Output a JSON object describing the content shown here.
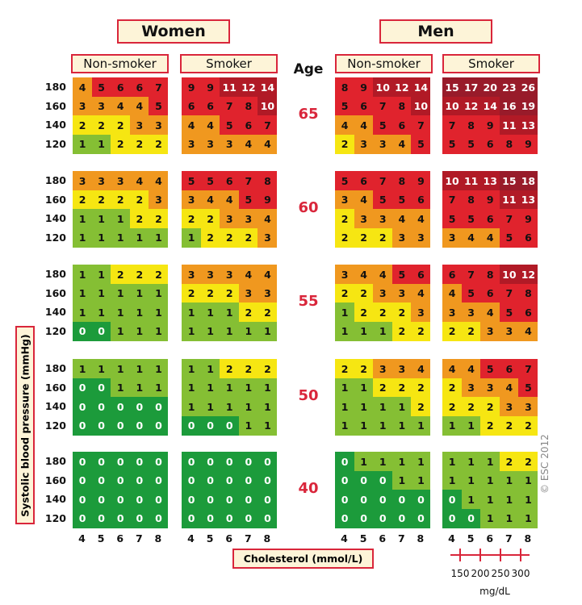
{
  "headers": {
    "women": "Women",
    "men": "Men",
    "non_smoker": "Non-smoker",
    "smoker": "Smoker",
    "age": "Age"
  },
  "ages": [
    "65",
    "60",
    "55",
    "50",
    "40"
  ],
  "bp_levels": [
    "180",
    "160",
    "140",
    "120"
  ],
  "cholesterol_ticks": [
    "4",
    "5",
    "6",
    "7",
    "8"
  ],
  "mgdl_ticks": [
    "150",
    "200",
    "250",
    "300"
  ],
  "axis": {
    "ylabel": "Systolic blood pressure (mmHg)",
    "xlabel": "Cholesterol (mmol/L)",
    "mgdl_unit": "mg/dL"
  },
  "copyright": "© ESC 2012",
  "colors": {
    "dark_green": "#1c9b3b",
    "light_green": "#85bf34",
    "yellow": "#f6e612",
    "orange": "#f0981f",
    "red": "#e0232d",
    "dark_red": "#b11a26",
    "darkest_red": "#981b2a",
    "box_border": "#d9263b",
    "box_fill": "#fdf4d8"
  },
  "chart_data": {
    "type": "heatmap",
    "title": "",
    "xlabel": "Cholesterol (mmol/L)",
    "ylabel": "Systolic blood pressure (mmHg)",
    "x": [
      4,
      5,
      6,
      7,
      8
    ],
    "y": [
      180,
      160,
      140,
      120
    ],
    "panels": [
      {
        "sex": "Women",
        "smoking": "Non-smoker",
        "age": 65,
        "values": [
          [
            4,
            5,
            6,
            6,
            7
          ],
          [
            3,
            3,
            4,
            4,
            5
          ],
          [
            2,
            2,
            2,
            3,
            3
          ],
          [
            1,
            1,
            2,
            2,
            2
          ]
        ]
      },
      {
        "sex": "Women",
        "smoking": "Smoker",
        "age": 65,
        "values": [
          [
            9,
            9,
            11,
            12,
            14
          ],
          [
            6,
            6,
            7,
            8,
            10
          ],
          [
            4,
            4,
            5,
            6,
            7
          ],
          [
            3,
            3,
            3,
            4,
            4
          ]
        ]
      },
      {
        "sex": "Men",
        "smoking": "Non-smoker",
        "age": 65,
        "values": [
          [
            8,
            9,
            10,
            12,
            14
          ],
          [
            5,
            6,
            7,
            8,
            10
          ],
          [
            4,
            4,
            5,
            6,
            7
          ],
          [
            2,
            3,
            3,
            4,
            5
          ]
        ]
      },
      {
        "sex": "Men",
        "smoking": "Smoker",
        "age": 65,
        "values": [
          [
            15,
            17,
            20,
            23,
            26
          ],
          [
            10,
            12,
            14,
            16,
            19
          ],
          [
            7,
            8,
            9,
            11,
            13
          ],
          [
            5,
            5,
            6,
            8,
            9
          ]
        ]
      },
      {
        "sex": "Women",
        "smoking": "Non-smoker",
        "age": 60,
        "values": [
          [
            3,
            3,
            3,
            4,
            4
          ],
          [
            2,
            2,
            2,
            2,
            3
          ],
          [
            1,
            1,
            1,
            2,
            2
          ],
          [
            1,
            1,
            1,
            1,
            1
          ]
        ]
      },
      {
        "sex": "Women",
        "smoking": "Smoker",
        "age": 60,
        "values": [
          [
            5,
            5,
            6,
            7,
            8
          ],
          [
            3,
            4,
            4,
            5,
            9
          ],
          [
            2,
            2,
            3,
            3,
            4
          ],
          [
            1,
            2,
            2,
            2,
            3
          ]
        ]
      },
      {
        "sex": "Men",
        "smoking": "Non-smoker",
        "age": 60,
        "values": [
          [
            5,
            6,
            7,
            8,
            9
          ],
          [
            3,
            4,
            5,
            5,
            6
          ],
          [
            2,
            3,
            3,
            4,
            4
          ],
          [
            2,
            2,
            2,
            3,
            3
          ]
        ]
      },
      {
        "sex": "Men",
        "smoking": "Smoker",
        "age": 60,
        "values": [
          [
            10,
            11,
            13,
            15,
            18
          ],
          [
            7,
            8,
            9,
            11,
            13
          ],
          [
            5,
            5,
            6,
            7,
            9
          ],
          [
            3,
            4,
            4,
            5,
            6
          ]
        ]
      },
      {
        "sex": "Women",
        "smoking": "Non-smoker",
        "age": 55,
        "values": [
          [
            1,
            1,
            2,
            2,
            2
          ],
          [
            1,
            1,
            1,
            1,
            1
          ],
          [
            1,
            1,
            1,
            1,
            1
          ],
          [
            0,
            0,
            1,
            1,
            1
          ]
        ]
      },
      {
        "sex": "Women",
        "smoking": "Smoker",
        "age": 55,
        "values": [
          [
            3,
            3,
            3,
            4,
            4
          ],
          [
            2,
            2,
            2,
            3,
            3
          ],
          [
            1,
            1,
            1,
            2,
            2
          ],
          [
            1,
            1,
            1,
            1,
            1
          ]
        ]
      },
      {
        "sex": "Men",
        "smoking": "Non-smoker",
        "age": 55,
        "values": [
          [
            3,
            4,
            4,
            5,
            6
          ],
          [
            2,
            2,
            3,
            3,
            4
          ],
          [
            1,
            2,
            2,
            2,
            3
          ],
          [
            1,
            1,
            1,
            2,
            2
          ]
        ]
      },
      {
        "sex": "Men",
        "smoking": "Smoker",
        "age": 55,
        "values": [
          [
            6,
            7,
            8,
            10,
            12
          ],
          [
            4,
            5,
            6,
            7,
            8
          ],
          [
            3,
            3,
            4,
            5,
            6
          ],
          [
            2,
            2,
            3,
            3,
            4
          ]
        ]
      },
      {
        "sex": "Women",
        "smoking": "Non-smoker",
        "age": 50,
        "values": [
          [
            1,
            1,
            1,
            1,
            1
          ],
          [
            0,
            0,
            1,
            1,
            1
          ],
          [
            0,
            0,
            0,
            0,
            0
          ],
          [
            0,
            0,
            0,
            0,
            0
          ]
        ]
      },
      {
        "sex": "Women",
        "smoking": "Smoker",
        "age": 50,
        "values": [
          [
            1,
            1,
            2,
            2,
            2
          ],
          [
            1,
            1,
            1,
            1,
            1
          ],
          [
            1,
            1,
            1,
            1,
            1
          ],
          [
            0,
            0,
            0,
            1,
            1
          ]
        ]
      },
      {
        "sex": "Men",
        "smoking": "Non-smoker",
        "age": 50,
        "values": [
          [
            2,
            2,
            3,
            3,
            4
          ],
          [
            1,
            1,
            2,
            2,
            2
          ],
          [
            1,
            1,
            1,
            1,
            2
          ],
          [
            1,
            1,
            1,
            1,
            1
          ]
        ]
      },
      {
        "sex": "Men",
        "smoking": "Smoker",
        "age": 50,
        "values": [
          [
            4,
            4,
            5,
            6,
            7
          ],
          [
            2,
            3,
            3,
            4,
            5
          ],
          [
            2,
            2,
            2,
            3,
            3
          ],
          [
            1,
            1,
            2,
            2,
            2
          ]
        ]
      },
      {
        "sex": "Women",
        "smoking": "Non-smoker",
        "age": 40,
        "values": [
          [
            0,
            0,
            0,
            0,
            0
          ],
          [
            0,
            0,
            0,
            0,
            0
          ],
          [
            0,
            0,
            0,
            0,
            0
          ],
          [
            0,
            0,
            0,
            0,
            0
          ]
        ]
      },
      {
        "sex": "Women",
        "smoking": "Smoker",
        "age": 40,
        "values": [
          [
            0,
            0,
            0,
            0,
            0
          ],
          [
            0,
            0,
            0,
            0,
            0
          ],
          [
            0,
            0,
            0,
            0,
            0
          ],
          [
            0,
            0,
            0,
            0,
            0
          ]
        ]
      },
      {
        "sex": "Men",
        "smoking": "Non-smoker",
        "age": 40,
        "values": [
          [
            0,
            1,
            1,
            1,
            1
          ],
          [
            0,
            0,
            0,
            1,
            1
          ],
          [
            0,
            0,
            0,
            0,
            0
          ],
          [
            0,
            0,
            0,
            0,
            0
          ]
        ]
      },
      {
        "sex": "Men",
        "smoking": "Smoker",
        "age": 40,
        "values": [
          [
            1,
            1,
            1,
            2,
            2
          ],
          [
            1,
            1,
            1,
            1,
            1
          ],
          [
            0,
            1,
            1,
            1,
            1
          ],
          [
            0,
            0,
            1,
            1,
            1
          ]
        ]
      }
    ]
  }
}
